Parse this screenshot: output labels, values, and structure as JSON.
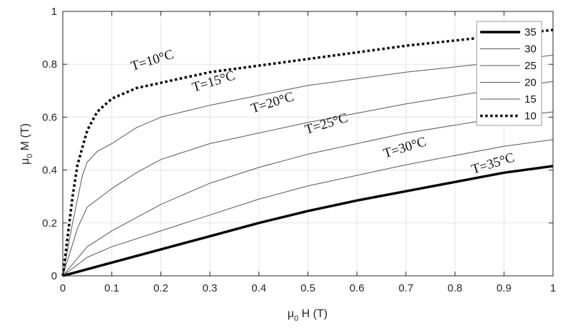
{
  "chart_data": {
    "type": "line",
    "title": "",
    "xlabel": {
      "symbol": "μ",
      "sub": "0",
      "rest": " H (T)"
    },
    "ylabel": {
      "symbol": "μ",
      "sub": "0",
      "rest": " M (T)"
    },
    "xlim": [
      0,
      1
    ],
    "ylim": [
      0,
      1
    ],
    "xticks": [
      0,
      0.1,
      0.2,
      0.3,
      0.4,
      0.5,
      0.6,
      0.7,
      0.8,
      0.9,
      1
    ],
    "xtick_labels": [
      "0",
      "0.1",
      "0.2",
      "0.3",
      "0.4",
      "0.5",
      "0.6",
      "0.7",
      "0.8",
      "0.9",
      "1"
    ],
    "yticks": [
      0,
      0.2,
      0.4,
      0.6,
      0.8,
      1
    ],
    "ytick_labels": [
      "0",
      "0.2",
      "0.4",
      "0.6",
      "0.8",
      "1"
    ],
    "grid": true,
    "legend_position": "top-right",
    "series": [
      {
        "name": "35",
        "style": "thick",
        "x": [
          0,
          0.1,
          0.2,
          0.3,
          0.4,
          0.5,
          0.6,
          0.7,
          0.8,
          0.9,
          1
        ],
        "y": [
          0,
          0.05,
          0.1,
          0.15,
          0.2,
          0.245,
          0.285,
          0.32,
          0.355,
          0.39,
          0.415
        ]
      },
      {
        "name": "30",
        "style": "thin",
        "x": [
          0,
          0.05,
          0.1,
          0.2,
          0.3,
          0.4,
          0.5,
          0.7,
          0.9,
          1
        ],
        "y": [
          0,
          0.07,
          0.11,
          0.17,
          0.23,
          0.29,
          0.34,
          0.42,
          0.49,
          0.515
        ]
      },
      {
        "name": "25",
        "style": "thin",
        "x": [
          0,
          0.05,
          0.1,
          0.2,
          0.3,
          0.4,
          0.5,
          0.7,
          0.9,
          1
        ],
        "y": [
          0,
          0.11,
          0.17,
          0.27,
          0.35,
          0.41,
          0.46,
          0.54,
          0.6,
          0.62
        ]
      },
      {
        "name": "20",
        "style": "thin",
        "x": [
          0,
          0.03,
          0.05,
          0.1,
          0.15,
          0.2,
          0.3,
          0.5,
          0.7,
          0.9,
          1
        ],
        "y": [
          0,
          0.18,
          0.26,
          0.33,
          0.39,
          0.44,
          0.5,
          0.58,
          0.65,
          0.71,
          0.735
        ]
      },
      {
        "name": "15",
        "style": "thin",
        "x": [
          0,
          0.02,
          0.04,
          0.05,
          0.07,
          0.1,
          0.15,
          0.2,
          0.3,
          0.5,
          0.7,
          0.9,
          1
        ],
        "y": [
          0,
          0.2,
          0.38,
          0.43,
          0.47,
          0.5,
          0.56,
          0.6,
          0.645,
          0.72,
          0.77,
          0.81,
          0.835
        ]
      },
      {
        "name": "10",
        "style": "dotted",
        "x": [
          0,
          0.01,
          0.02,
          0.03,
          0.05,
          0.07,
          0.1,
          0.15,
          0.2,
          0.3,
          0.5,
          0.7,
          0.9,
          1
        ],
        "y": [
          0,
          0.15,
          0.3,
          0.42,
          0.55,
          0.62,
          0.67,
          0.71,
          0.73,
          0.77,
          0.82,
          0.87,
          0.91,
          0.93
        ]
      }
    ],
    "annotations": [
      {
        "text": "T=10°C",
        "x": 0.185,
        "y": 0.8
      },
      {
        "text": "T=15°C",
        "x": 0.31,
        "y": 0.72
      },
      {
        "text": "T=20°C",
        "x": 0.43,
        "y": 0.64
      },
      {
        "text": "T=25°C",
        "x": 0.54,
        "y": 0.56
      },
      {
        "text": "T=30°C",
        "x": 0.7,
        "y": 0.47
      },
      {
        "text": "T=35°C",
        "x": 0.88,
        "y": 0.41
      }
    ]
  }
}
